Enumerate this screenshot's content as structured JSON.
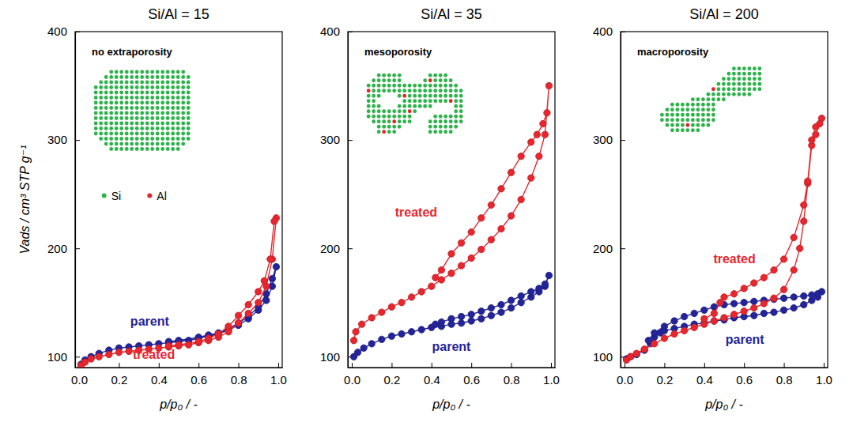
{
  "chart_data": [
    {
      "type": "line",
      "title": "Si/Al = 15",
      "xlabel": "p/p₀ / -",
      "ylabel": "Vads / cm³ STP g⁻¹",
      "xlim": [
        -0.02,
        1.02
      ],
      "ylim": [
        90,
        400
      ],
      "xticks": [
        {
          "value": 0,
          "label": "0.0"
        },
        {
          "value": 0.2,
          "label": "0.2"
        },
        {
          "value": 0.4,
          "label": "0.4"
        },
        {
          "value": 0.6,
          "label": "0.6"
        },
        {
          "value": 0.8,
          "label": "0.8"
        },
        {
          "value": 1,
          "label": "1.0"
        }
      ],
      "yticks": [
        100,
        200,
        300,
        400
      ],
      "marker": "circle",
      "line_style": "solid",
      "annotations": [
        {
          "text": "no extraporosity"
        },
        {
          "text": "Si",
          "color": "#2db34a"
        },
        {
          "text": "Al",
          "color": "#e0262b"
        }
      ],
      "series": [
        {
          "name": "parent",
          "color": "#24249a",
          "x": [
            0.01,
            0.03,
            0.06,
            0.1,
            0.15,
            0.2,
            0.25,
            0.3,
            0.35,
            0.4,
            0.45,
            0.5,
            0.55,
            0.6,
            0.65,
            0.7,
            0.75,
            0.8,
            0.85,
            0.9,
            0.94,
            0.97,
            0.99,
            0.97,
            0.94,
            0.9,
            0.85,
            0.8,
            0.75,
            0.7,
            0.65,
            0.6,
            0.5,
            0.45
          ],
          "values": [
            93,
            97,
            100,
            103,
            106,
            108,
            109,
            110,
            111,
            112,
            113,
            114,
            115,
            117,
            119,
            121,
            125,
            129,
            135,
            143,
            152,
            165,
            183,
            172,
            158,
            146,
            137,
            131,
            126,
            122,
            120,
            118,
            115,
            114
          ]
        },
        {
          "name": "treated",
          "color": "#e8262e",
          "x": [
            0.01,
            0.03,
            0.06,
            0.1,
            0.15,
            0.2,
            0.25,
            0.3,
            0.35,
            0.4,
            0.45,
            0.5,
            0.55,
            0.6,
            0.65,
            0.7,
            0.75,
            0.8,
            0.85,
            0.9,
            0.94,
            0.97,
            0.99,
            0.98,
            0.96,
            0.93,
            0.9,
            0.85,
            0.8,
            0.75,
            0.7,
            0.65,
            0.6,
            0.5,
            0.45
          ],
          "values": [
            92,
            95,
            98,
            100,
            102,
            104,
            105,
            106,
            107,
            108,
            109,
            110,
            111,
            113,
            115,
            118,
            123,
            131,
            140,
            150,
            165,
            190,
            228,
            225,
            190,
            170,
            160,
            148,
            138,
            128,
            121,
            117,
            114,
            111,
            110
          ]
        }
      ]
    },
    {
      "type": "line",
      "title": "Si/Al = 35",
      "xlabel": "p/p₀ / -",
      "xlim": [
        -0.02,
        1.02
      ],
      "ylim": [
        90,
        400
      ],
      "xticks": [
        {
          "value": 0,
          "label": "0.0"
        },
        {
          "value": 0.2,
          "label": "0.2"
        },
        {
          "value": 0.4,
          "label": "0.4"
        },
        {
          "value": 0.6,
          "label": "0.6"
        },
        {
          "value": 0.8,
          "label": "0.8"
        },
        {
          "value": 1,
          "label": "1.0"
        }
      ],
      "yticks": [
        100,
        200,
        300,
        400
      ],
      "marker": "circle",
      "line_style": "solid",
      "annotations": [
        {
          "text": "mesoporosity"
        }
      ],
      "series": [
        {
          "name": "parent",
          "color": "#24249a",
          "x": [
            0.01,
            0.03,
            0.06,
            0.1,
            0.15,
            0.2,
            0.25,
            0.3,
            0.35,
            0.4,
            0.45,
            0.5,
            0.55,
            0.6,
            0.65,
            0.7,
            0.75,
            0.8,
            0.85,
            0.9,
            0.94,
            0.97,
            0.99,
            0.97,
            0.94,
            0.9,
            0.85,
            0.8,
            0.75,
            0.7,
            0.65,
            0.6,
            0.55,
            0.5,
            0.45,
            0.42
          ],
          "values": [
            100,
            104,
            108,
            112,
            116,
            119,
            121,
            123,
            125,
            127,
            128,
            130,
            131,
            133,
            135,
            138,
            141,
            145,
            150,
            155,
            160,
            165,
            175,
            167,
            163,
            160,
            156,
            152,
            148,
            145,
            142,
            139,
            137,
            135,
            132,
            130
          ]
        },
        {
          "name": "treated",
          "color": "#e8262e",
          "x": [
            0.01,
            0.02,
            0.05,
            0.1,
            0.15,
            0.2,
            0.25,
            0.3,
            0.35,
            0.4,
            0.45,
            0.5,
            0.55,
            0.6,
            0.65,
            0.7,
            0.75,
            0.8,
            0.85,
            0.9,
            0.94,
            0.97,
            0.99,
            0.98,
            0.96,
            0.93,
            0.9,
            0.85,
            0.8,
            0.75,
            0.7,
            0.65,
            0.6,
            0.55,
            0.5,
            0.45,
            0.42
          ],
          "values": [
            115,
            123,
            130,
            136,
            141,
            146,
            150,
            155,
            160,
            165,
            171,
            177,
            184,
            191,
            199,
            208,
            218,
            230,
            245,
            265,
            285,
            305,
            350,
            325,
            315,
            305,
            298,
            285,
            270,
            255,
            240,
            228,
            215,
            205,
            195,
            180,
            173
          ]
        }
      ]
    },
    {
      "type": "line",
      "title": "Si/Al = 200",
      "xlabel": "p/p₀ / -",
      "xlim": [
        -0.02,
        1.02
      ],
      "ylim": [
        90,
        400
      ],
      "xticks": [
        {
          "value": 0,
          "label": "0.0"
        },
        {
          "value": 0.2,
          "label": "0.2"
        },
        {
          "value": 0.4,
          "label": "0.4"
        },
        {
          "value": 0.6,
          "label": "0.6"
        },
        {
          "value": 0.8,
          "label": "0.8"
        },
        {
          "value": 1,
          "label": "1.0"
        }
      ],
      "yticks": [
        100,
        200,
        300,
        400
      ],
      "marker": "circle",
      "line_style": "solid",
      "annotations": [
        {
          "text": "macroporosity"
        }
      ],
      "series": [
        {
          "name": "parent",
          "color": "#24249a",
          "x": [
            0.01,
            0.03,
            0.06,
            0.1,
            0.13,
            0.15,
            0.18,
            0.2,
            0.25,
            0.3,
            0.35,
            0.4,
            0.45,
            0.5,
            0.55,
            0.6,
            0.65,
            0.7,
            0.75,
            0.8,
            0.85,
            0.9,
            0.94,
            0.97,
            0.99,
            0.97,
            0.94,
            0.9,
            0.85,
            0.8,
            0.75,
            0.7,
            0.65,
            0.6,
            0.55,
            0.5,
            0.45,
            0.4,
            0.35,
            0.3,
            0.25,
            0.2,
            0.15,
            0.12
          ],
          "values": [
            98,
            100,
            102,
            106,
            112,
            118,
            122,
            124,
            126,
            128,
            130,
            131,
            133,
            134,
            136,
            137,
            138,
            140,
            141,
            143,
            145,
            148,
            152,
            155,
            160,
            158,
            157,
            156,
            155,
            154,
            153,
            152,
            151,
            150,
            149,
            148,
            146,
            143,
            140,
            137,
            133,
            128,
            122,
            115
          ]
        },
        {
          "name": "treated",
          "color": "#e8262e",
          "x": [
            0.01,
            0.03,
            0.06,
            0.1,
            0.15,
            0.2,
            0.25,
            0.3,
            0.35,
            0.4,
            0.45,
            0.5,
            0.55,
            0.6,
            0.65,
            0.7,
            0.75,
            0.8,
            0.85,
            0.88,
            0.9,
            0.92,
            0.94,
            0.96,
            0.99,
            0.98,
            0.96,
            0.94,
            0.92,
            0.9,
            0.85,
            0.8,
            0.75,
            0.7,
            0.65,
            0.6,
            0.55,
            0.5,
            0.48,
            0.45,
            0.4
          ],
          "values": [
            97,
            100,
            103,
            107,
            112,
            117,
            121,
            124,
            127,
            130,
            133,
            136,
            139,
            142,
            145,
            149,
            154,
            162,
            180,
            200,
            225,
            260,
            295,
            305,
            320,
            315,
            312,
            300,
            262,
            240,
            210,
            190,
            180,
            173,
            168,
            163,
            158,
            155,
            150,
            140,
            135
          ]
        }
      ]
    }
  ]
}
